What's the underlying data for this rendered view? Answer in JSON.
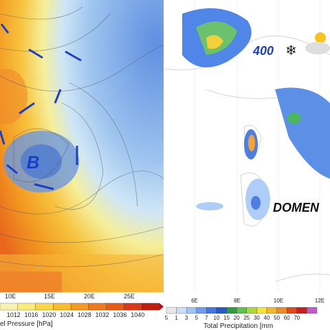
{
  "left_map": {
    "low_label": "B",
    "lon_labels": [
      "10E",
      "15E",
      "20E",
      "25E"
    ],
    "colorbar_labels": [
      "1012",
      "1016",
      "1020",
      "1024",
      "1028",
      "1032",
      "1036",
      "1040"
    ],
    "colorbar_title": "el Pressure [hPa]"
  },
  "right_map": {
    "height_label": "400",
    "day_label": "DOMEN",
    "lon_labels": [
      "6E",
      "8E",
      "10E",
      "12E"
    ],
    "colorbar_labels": [
      "5",
      "1",
      "3",
      "5",
      "7",
      "10",
      "15",
      "20",
      "25",
      "30",
      "40",
      "50",
      "60",
      "70"
    ],
    "colorbar_title": "Total Precipitation [mm"
  }
}
